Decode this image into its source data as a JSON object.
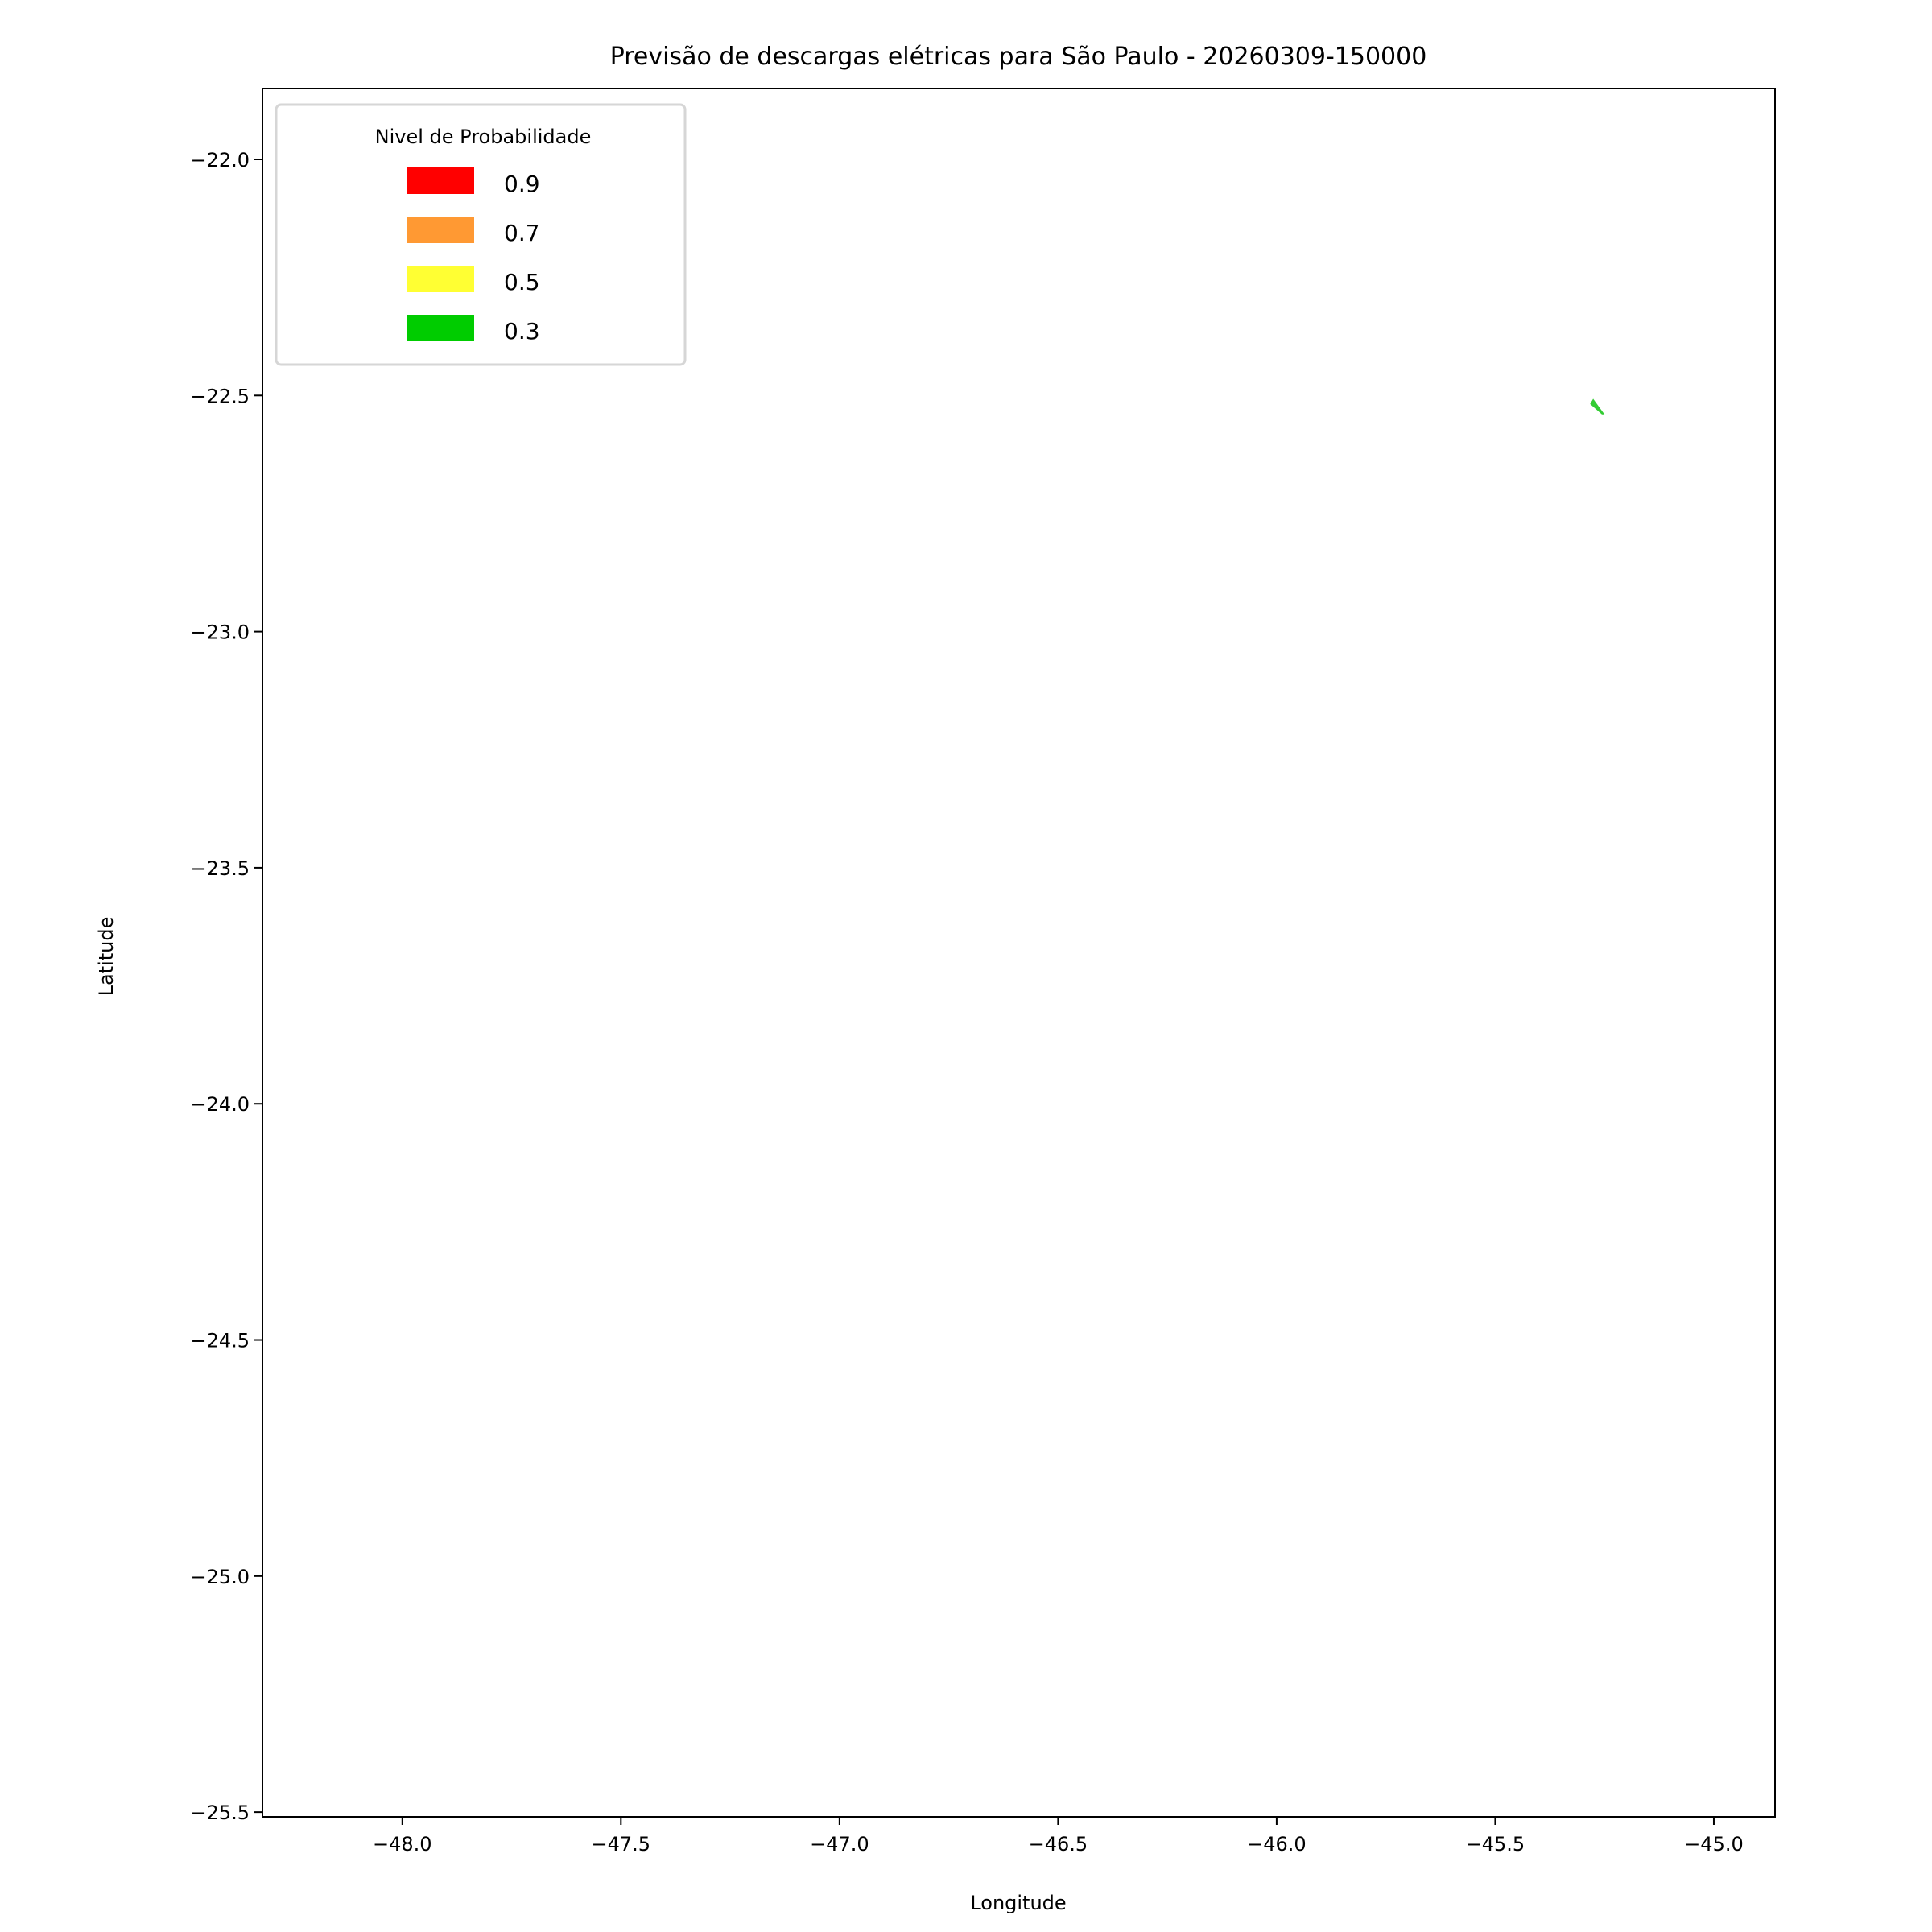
{
  "chart_data": {
    "type": "map",
    "title": "Previsão de descargas elétricas para São Paulo - 20260309-150000",
    "xlabel": "Longitude",
    "ylabel": "Latitude",
    "xlim": [
      -48.32,
      -44.86
    ],
    "ylim": [
      -25.51,
      -21.85
    ],
    "xticks": [
      -48.0,
      -47.5,
      -47.0,
      -46.5,
      -46.0,
      -45.5,
      -45.0
    ],
    "xtick_labels": [
      "−48.0",
      "−47.5",
      "−47.0",
      "−46.5",
      "−46.0",
      "−45.5",
      "−45.0"
    ],
    "yticks": [
      -22.0,
      -22.5,
      -23.0,
      -23.5,
      -24.0,
      -24.5,
      -25.0,
      -25.5
    ],
    "ytick_labels": [
      "−22.0",
      "−22.5",
      "−23.0",
      "−23.5",
      "−24.0",
      "−24.5",
      "−25.0",
      "−25.5"
    ],
    "grid": false,
    "legend": {
      "title": "Nivel de Probabilidade",
      "placement": "top-left",
      "entries": [
        {
          "label": "0.9",
          "color": "#ff0000"
        },
        {
          "label": "0.7",
          "color": "#ff9933"
        },
        {
          "label": "0.5",
          "color": "#ffff33"
        },
        {
          "label": "0.3",
          "color": "#00cc00"
        }
      ]
    },
    "polygons": [
      {
        "level": 0.3,
        "color": "#33cc33",
        "points": [
          [
            -45.283,
            -22.518
          ],
          [
            -45.276,
            -22.507
          ],
          [
            -45.25,
            -22.54
          ],
          [
            -45.256,
            -22.54
          ]
        ]
      }
    ]
  }
}
